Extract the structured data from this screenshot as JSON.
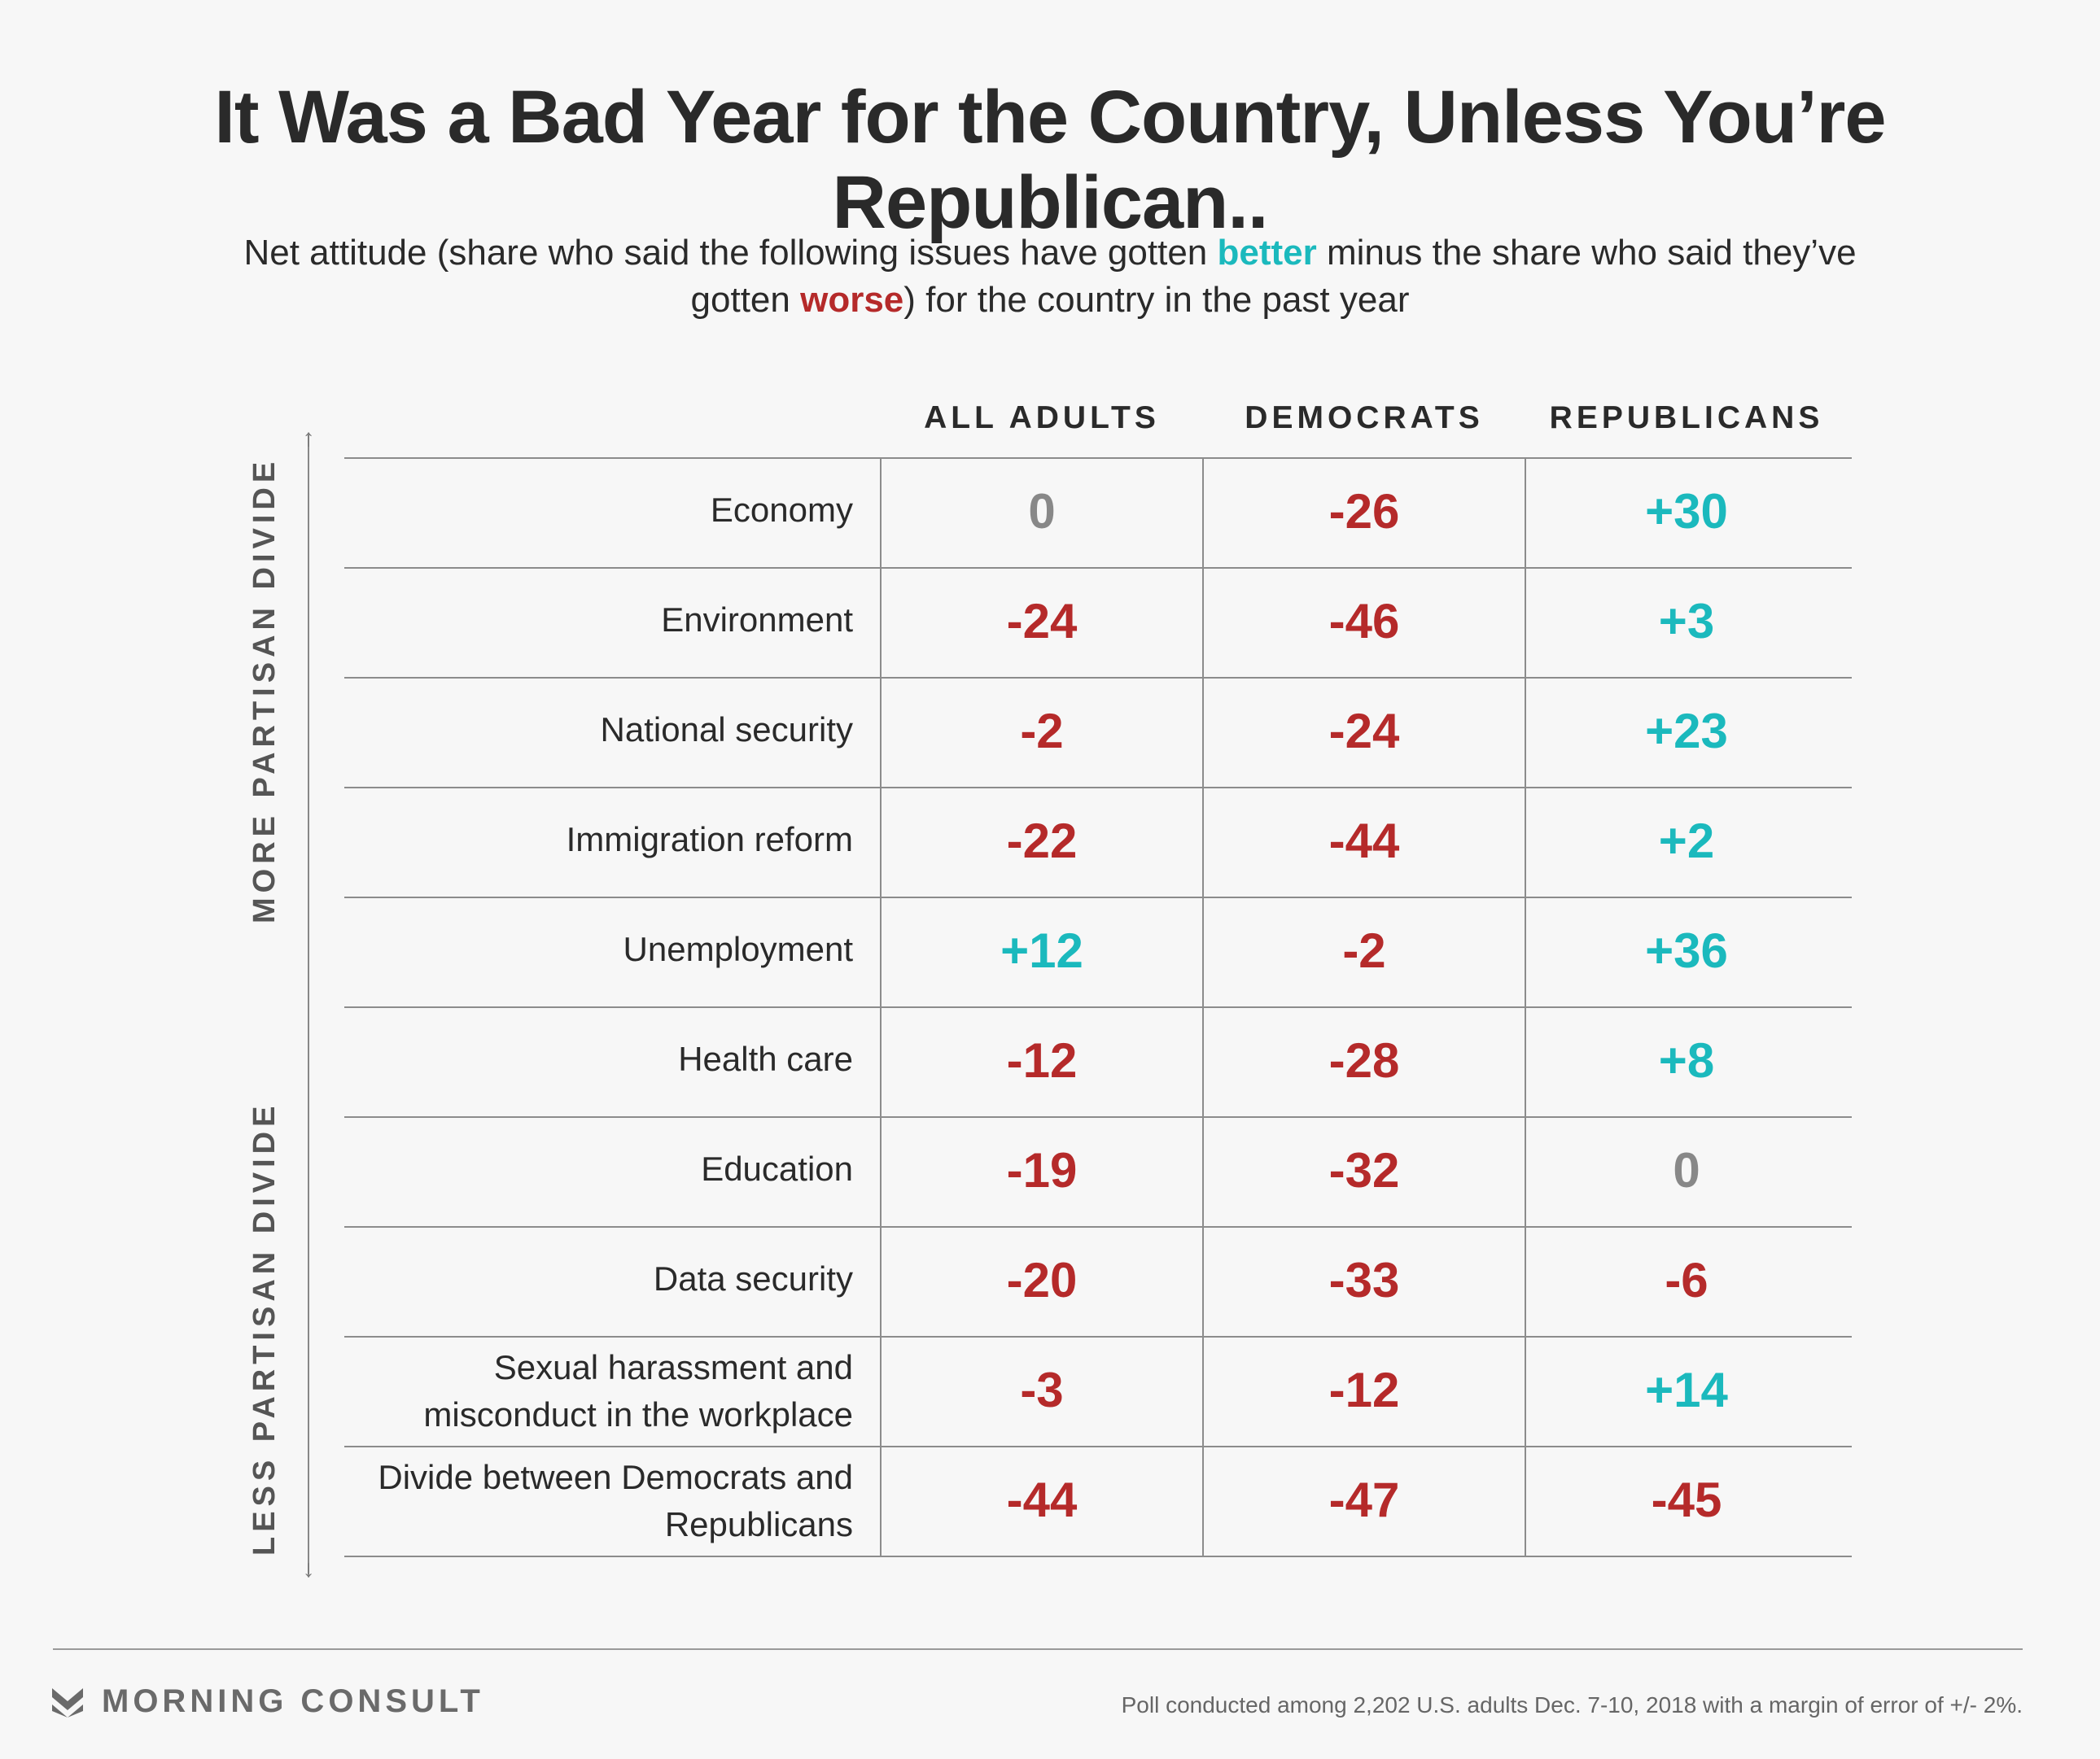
{
  "title": "It Was a Bad Year for the Country, Unless You’re Republican..",
  "subtitle": {
    "part1": "Net attitude (share who said the following issues have gotten ",
    "better": "better",
    "part2": " minus the share who said they’ve gotten ",
    "worse": "worse",
    "part3": ") for the country in the past year"
  },
  "axis": {
    "top_label": "MORE PARTISAN DIVIDE",
    "bottom_label": "LESS PARTISAN DIVIDE"
  },
  "colors": {
    "negative": "#b52a2a",
    "positive": "#1bb9bd",
    "zero": "#888888"
  },
  "chart_data": {
    "type": "table",
    "columns": [
      "ALL ADULTS",
      "DEMOCRATS",
      "REPUBLICANS"
    ],
    "rows": [
      {
        "label": "Economy",
        "values": [
          "0",
          "-26",
          "+30"
        ]
      },
      {
        "label": "Environment",
        "values": [
          "-24",
          "-46",
          "+3"
        ]
      },
      {
        "label": "National security",
        "values": [
          "-2",
          "-24",
          "+23"
        ]
      },
      {
        "label": "Immigration reform",
        "values": [
          "-22",
          "-44",
          "+2"
        ]
      },
      {
        "label": "Unemployment",
        "values": [
          "+12",
          "-2",
          "+36"
        ]
      },
      {
        "label": "Health care",
        "values": [
          "-12",
          "-28",
          "+8"
        ]
      },
      {
        "label": "Education",
        "values": [
          "-19",
          "-32",
          "0"
        ]
      },
      {
        "label": "Data security",
        "values": [
          "-20",
          "-33",
          "-6"
        ]
      },
      {
        "label": "Sexual harassment and misconduct in the workplace",
        "values": [
          "-3",
          "-12",
          "+14"
        ]
      },
      {
        "label": "Divide between Democrats and Republicans",
        "values": [
          "-44",
          "-47",
          "-45"
        ]
      }
    ]
  },
  "footer": {
    "brand": "MORNING CONSULT",
    "source": "Poll conducted among 2,202 U.S. adults Dec. 7-10, 2018 with a margin of error of +/- 2%."
  }
}
